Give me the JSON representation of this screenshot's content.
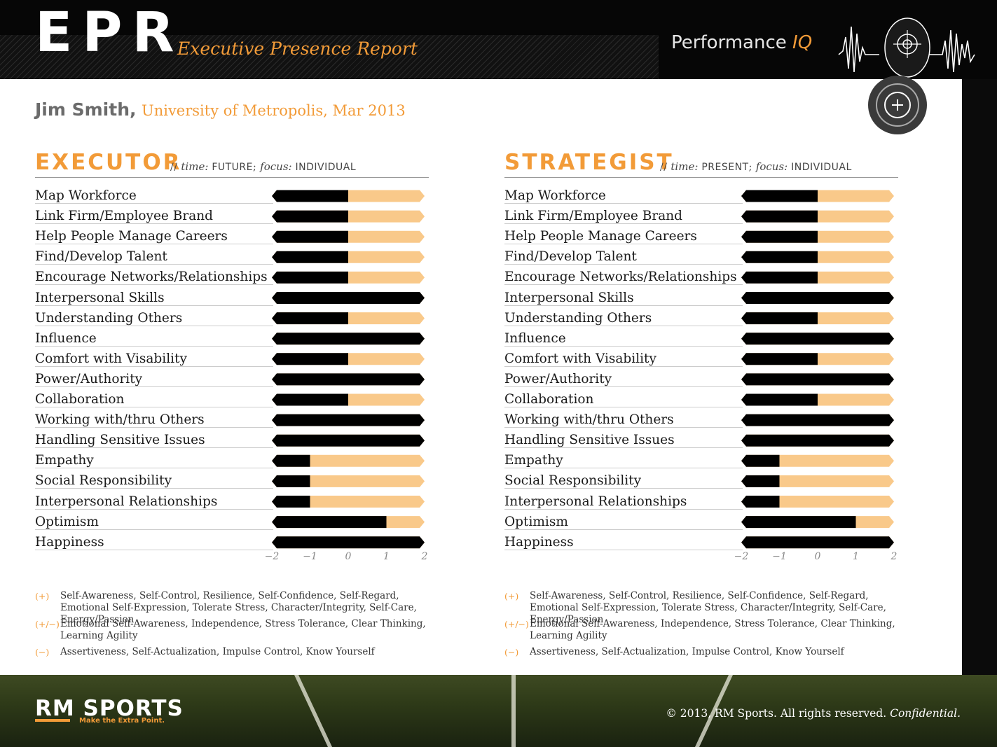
{
  "header": {
    "logo": "EPR",
    "subtitle": "Executive Presence Report",
    "brand_main": "Performance",
    "brand_accent": "IQ"
  },
  "person": {
    "name": "Jim Smith,",
    "meta": "University of Metropolis, Mar 2013"
  },
  "colors": {
    "accent": "#f29b38",
    "positive": "#000000",
    "light": "#f9c98a"
  },
  "chart_data": [
    {
      "type": "bar",
      "title": "EXECUTOR",
      "tag": {
        "prefix": "// ",
        "time_label": "time:",
        "time_value": " FUTURE",
        "sep": "; ",
        "focus_label": "focus:",
        "focus_value": " INDIVIDUAL"
      },
      "x_ticks": [
        "−2",
        "−1",
        "0",
        "1",
        "2"
      ],
      "xlim": [
        -2,
        2
      ],
      "categories": [
        "Map Workforce",
        "Link Firm/Employee Brand",
        "Help People Manage Careers",
        "Find/Develop Talent",
        "Encourage Networks/Relationships",
        "Interpersonal Skills",
        "Understanding Others",
        "Influence",
        "Comfort with Visability",
        "Power/Authority",
        "Collaboration",
        "Working with/thru Others",
        "Handling Sensitive Issues",
        "Empathy",
        "Social Responsibility",
        "Interpersonal Relationships",
        "Optimism",
        "Happiness"
      ],
      "values": [
        0,
        0,
        0,
        0,
        0,
        2,
        0,
        2,
        0,
        2,
        0,
        2,
        2,
        -1,
        -1,
        -1,
        1,
        2
      ]
    },
    {
      "type": "bar",
      "title": "STRATEGIST",
      "tag": {
        "prefix": "// ",
        "time_label": "time:",
        "time_value": " PRESENT",
        "sep": "; ",
        "focus_label": "focus:",
        "focus_value": " INDIVIDUAL"
      },
      "x_ticks": [
        "−2",
        "−1",
        "0",
        "1",
        "2"
      ],
      "xlim": [
        -2,
        2
      ],
      "categories": [
        "Map Workforce",
        "Link Firm/Employee Brand",
        "Help People Manage Careers",
        "Find/Develop Talent",
        "Encourage Networks/Relationships",
        "Interpersonal Skills",
        "Understanding Others",
        "Influence",
        "Comfort with Visability",
        "Power/Authority",
        "Collaboration",
        "Working with/thru Others",
        "Handling Sensitive Issues",
        "Empathy",
        "Social Responsibility",
        "Interpersonal Relationships",
        "Optimism",
        "Happiness"
      ],
      "values": [
        0,
        0,
        0,
        0,
        0,
        2,
        0,
        2,
        0,
        2,
        0,
        2,
        2,
        -1,
        -1,
        -1,
        1,
        2
      ]
    }
  ],
  "legend": [
    {
      "mark": "(+)",
      "text": "Self-Awareness, Self-Control, Resilience, Self-Confidence, Self-Regard, Emotional Self-Expression, Tolerate Stress, Character/Integrity, Self-Care, Energy/Passion"
    },
    {
      "mark": "(+/−)",
      "text": "Emotional Self-Awareness, Independence, Stress Tolerance, Clear Thinking, Learning Agility"
    },
    {
      "mark": "(−)",
      "text": "Assertiveness, Self-Actualization, Impulse Control, Know Yourself"
    }
  ],
  "footer": {
    "logo": "RM SPORTS",
    "tagline": "Make the Extra Point.",
    "copyright": "© 2013, RM Sports. All rights reserved. ",
    "confidential": "Confidential."
  }
}
